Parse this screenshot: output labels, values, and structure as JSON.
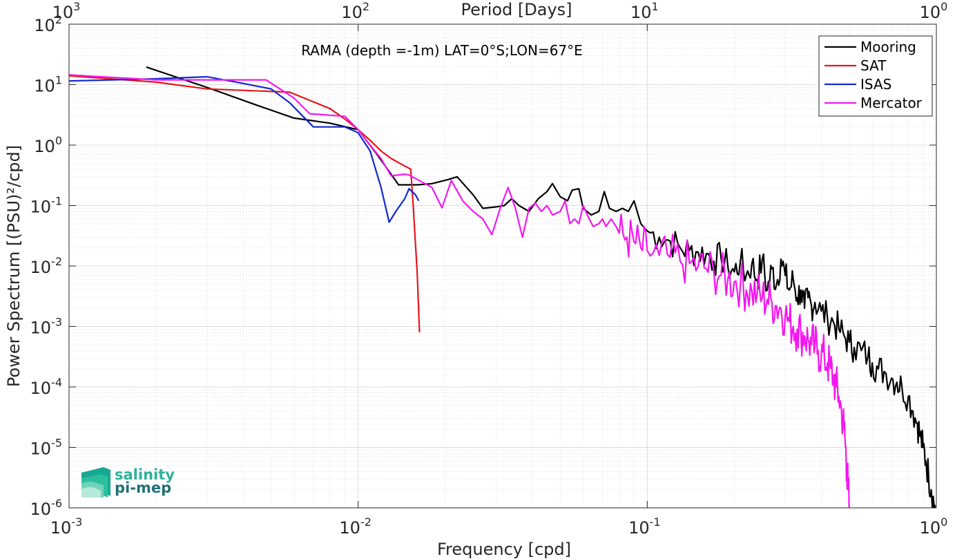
{
  "logo": {
    "line1": "salinity",
    "line2": "pi-mep",
    "color1": "#2bb39c",
    "color2": "#1f6f74"
  },
  "chart_data": {
    "type": "line",
    "title": "RAMA (depth =-1m) LAT=0°S;LON=67°E",
    "xlabel": "Frequency [cpd]",
    "ylabel": "Power Spectrum [(PSU)²/cpd]",
    "top_xlabel": "Period [Days]",
    "x_scale": "log",
    "y_scale": "log",
    "xlim": [
      0.001,
      1
    ],
    "ylim": [
      1e-06,
      100
    ],
    "x_ticks": [
      {
        "value": 0.001,
        "base": "10",
        "exp": "-3"
      },
      {
        "value": 0.01,
        "base": "10",
        "exp": "-2"
      },
      {
        "value": 0.1,
        "base": "10",
        "exp": "-1"
      },
      {
        "value": 1,
        "base": "10",
        "exp": "0"
      }
    ],
    "top_ticks": [
      {
        "value": 0.001,
        "base": "10",
        "exp": "3"
      },
      {
        "value": 0.01,
        "base": "10",
        "exp": "2"
      },
      {
        "value": 0.1,
        "base": "10",
        "exp": "1"
      },
      {
        "value": 1,
        "base": "10",
        "exp": "0"
      }
    ],
    "y_ticks": [
      {
        "value": 100,
        "base": "10",
        "exp": "2"
      },
      {
        "value": 10,
        "base": "10",
        "exp": "1"
      },
      {
        "value": 1,
        "base": "10",
        "exp": "0"
      },
      {
        "value": 0.1,
        "base": "10",
        "exp": "-1"
      },
      {
        "value": 0.01,
        "base": "10",
        "exp": "-2"
      },
      {
        "value": 0.001,
        "base": "10",
        "exp": "-3"
      },
      {
        "value": 0.0001,
        "base": "10",
        "exp": "-4"
      },
      {
        "value": 1e-05,
        "base": "10",
        "exp": "-5"
      },
      {
        "value": 1e-06,
        "base": "10",
        "exp": "-6"
      }
    ],
    "grid": true,
    "legend_position": "top-right",
    "series": [
      {
        "name": "Mooring",
        "color": "#000000",
        "points": [
          [
            0.00185,
            19.5
          ],
          [
            0.003,
            9.0
          ],
          [
            0.0045,
            4.5
          ],
          [
            0.006,
            2.8
          ],
          [
            0.008,
            2.3
          ],
          [
            0.01,
            1.8
          ],
          [
            0.0115,
            0.75
          ],
          [
            0.013,
            0.33
          ],
          [
            0.0138,
            0.22
          ],
          [
            0.016,
            0.22
          ],
          [
            0.018,
            0.23
          ],
          [
            0.0205,
            0.27
          ],
          [
            0.022,
            0.3
          ],
          [
            0.025,
            0.15
          ],
          [
            0.027,
            0.09
          ],
          [
            0.03,
            0.095
          ],
          [
            0.032,
            0.1
          ],
          [
            0.034,
            0.13
          ],
          [
            0.036,
            0.1
          ],
          [
            0.039,
            0.08
          ],
          [
            0.042,
            0.13
          ],
          [
            0.045,
            0.17
          ],
          [
            0.047,
            0.23
          ],
          [
            0.05,
            0.14
          ],
          [
            0.053,
            0.12
          ],
          [
            0.055,
            0.18
          ],
          [
            0.058,
            0.19
          ],
          [
            0.06,
            0.09
          ],
          [
            0.064,
            0.07
          ],
          [
            0.068,
            0.08
          ],
          [
            0.071,
            0.17
          ],
          [
            0.074,
            0.09
          ],
          [
            0.078,
            0.08
          ],
          [
            0.082,
            0.09
          ],
          [
            0.086,
            0.08
          ],
          [
            0.09,
            0.12
          ],
          [
            0.095,
            0.05
          ],
          [
            0.1,
            0.038
          ],
          [
            0.11,
            0.03
          ],
          [
            0.12,
            0.026
          ],
          [
            0.13,
            0.02
          ],
          [
            0.14,
            0.018
          ],
          [
            0.15,
            0.017
          ],
          [
            0.16,
            0.016
          ],
          [
            0.17,
            0.012
          ],
          [
            0.18,
            0.014
          ],
          [
            0.19,
            0.01
          ],
          [
            0.2,
            0.008
          ],
          [
            0.21,
            0.012
          ],
          [
            0.22,
            0.007
          ],
          [
            0.23,
            0.011
          ],
          [
            0.24,
            0.006
          ],
          [
            0.25,
            0.013
          ],
          [
            0.26,
            0.004
          ],
          [
            0.27,
            0.009
          ],
          [
            0.28,
            0.005
          ],
          [
            0.29,
            0.013
          ],
          [
            0.3,
            0.007
          ],
          [
            0.31,
            0.004
          ],
          [
            0.32,
            0.006
          ],
          [
            0.33,
            0.003
          ],
          [
            0.34,
            0.004
          ],
          [
            0.35,
            0.002
          ],
          [
            0.36,
            0.003
          ],
          [
            0.37,
            0.0022
          ],
          [
            0.38,
            0.0025
          ],
          [
            0.4,
            0.0018
          ],
          [
            0.42,
            0.0014
          ],
          [
            0.44,
            0.0012
          ],
          [
            0.46,
            0.0009
          ],
          [
            0.48,
            0.0007
          ],
          [
            0.5,
            0.00055
          ],
          [
            0.52,
            0.00045
          ],
          [
            0.55,
            0.0004
          ],
          [
            0.58,
            0.00032
          ],
          [
            0.6,
            0.00025
          ],
          [
            0.63,
            0.0002
          ],
          [
            0.66,
            0.00018
          ],
          [
            0.7,
            0.00014
          ],
          [
            0.73,
            0.00012
          ],
          [
            0.76,
            0.0001
          ],
          [
            0.8,
            7e-05
          ],
          [
            0.83,
            4e-05
          ],
          [
            0.86,
            2.5e-05
          ],
          [
            0.88,
            1.5e-05
          ],
          [
            0.9,
            1e-05
          ],
          [
            0.92,
            6e-06
          ],
          [
            0.94,
            3.5e-06
          ],
          [
            0.96,
            2e-06
          ],
          [
            0.98,
            1.2e-06
          ],
          [
            0.99,
            1e-06
          ]
        ],
        "noise": 0.55,
        "noise_from": 0.1
      },
      {
        "name": "SAT",
        "color": "#e8141b",
        "points": [
          [
            0.001,
            14.0
          ],
          [
            0.002,
            11.0
          ],
          [
            0.003,
            8.5
          ],
          [
            0.0058,
            7.5
          ],
          [
            0.008,
            4.0
          ],
          [
            0.009,
            2.7
          ],
          [
            0.01,
            1.8
          ],
          [
            0.011,
            1.2
          ],
          [
            0.012,
            0.8
          ],
          [
            0.013,
            0.6
          ],
          [
            0.0145,
            0.45
          ],
          [
            0.0152,
            0.4
          ],
          [
            0.0155,
            0.1
          ],
          [
            0.016,
            0.008
          ],
          [
            0.0163,
            0.0008
          ]
        ]
      },
      {
        "name": "ISAS",
        "color": "#1028d4",
        "points": [
          [
            0.001,
            11.5
          ],
          [
            0.002,
            12.5
          ],
          [
            0.003,
            13.5
          ],
          [
            0.0038,
            11.0
          ],
          [
            0.005,
            8.5
          ],
          [
            0.0058,
            5.0
          ],
          [
            0.007,
            2.0
          ],
          [
            0.008,
            2.0
          ],
          [
            0.009,
            2.0
          ],
          [
            0.01,
            1.6
          ],
          [
            0.011,
            0.8
          ],
          [
            0.012,
            0.2
          ],
          [
            0.0128,
            0.053
          ],
          [
            0.0135,
            0.08
          ],
          [
            0.0145,
            0.13
          ],
          [
            0.015,
            0.19
          ],
          [
            0.0158,
            0.15
          ],
          [
            0.0162,
            0.12
          ]
        ]
      },
      {
        "name": "Mercator",
        "color": "#f417f0",
        "points": [
          [
            0.001,
            14.5
          ],
          [
            0.002,
            12.0
          ],
          [
            0.003,
            12.0
          ],
          [
            0.0048,
            12.0
          ],
          [
            0.006,
            6.0
          ],
          [
            0.0068,
            3.3
          ],
          [
            0.009,
            3.0
          ],
          [
            0.01,
            1.8
          ],
          [
            0.011,
            1.0
          ],
          [
            0.012,
            0.6
          ],
          [
            0.013,
            0.31
          ],
          [
            0.0145,
            0.33
          ],
          [
            0.015,
            0.32
          ],
          [
            0.0165,
            0.25
          ],
          [
            0.018,
            0.2
          ],
          [
            0.0195,
            0.092
          ],
          [
            0.021,
            0.26
          ],
          [
            0.023,
            0.12
          ],
          [
            0.025,
            0.08
          ],
          [
            0.027,
            0.06
          ],
          [
            0.029,
            0.033
          ],
          [
            0.031,
            0.09
          ],
          [
            0.033,
            0.2
          ],
          [
            0.035,
            0.09
          ],
          [
            0.037,
            0.03
          ],
          [
            0.039,
            0.09
          ],
          [
            0.041,
            0.11
          ],
          [
            0.043,
            0.08
          ],
          [
            0.045,
            0.1
          ],
          [
            0.047,
            0.07
          ],
          [
            0.05,
            0.08
          ],
          [
            0.052,
            0.12
          ],
          [
            0.054,
            0.05
          ],
          [
            0.056,
            0.06
          ],
          [
            0.058,
            0.05
          ],
          [
            0.06,
            0.1
          ],
          [
            0.063,
            0.06
          ],
          [
            0.065,
            0.045
          ],
          [
            0.068,
            0.05
          ],
          [
            0.07,
            0.06
          ],
          [
            0.072,
            0.045
          ],
          [
            0.075,
            0.06
          ],
          [
            0.078,
            0.045
          ],
          [
            0.08,
            0.035
          ],
          [
            0.085,
            0.03
          ],
          [
            0.09,
            0.025
          ],
          [
            0.095,
            0.02
          ],
          [
            0.1,
            0.018
          ],
          [
            0.11,
            0.015
          ],
          [
            0.12,
            0.014
          ],
          [
            0.13,
            0.012
          ],
          [
            0.14,
            0.011
          ],
          [
            0.15,
            0.01
          ],
          [
            0.16,
            0.009
          ],
          [
            0.17,
            0.008
          ],
          [
            0.18,
            0.007
          ],
          [
            0.19,
            0.006
          ],
          [
            0.2,
            0.0055
          ],
          [
            0.21,
            0.005
          ],
          [
            0.22,
            0.004
          ],
          [
            0.23,
            0.0038
          ],
          [
            0.24,
            0.0035
          ],
          [
            0.25,
            0.003
          ],
          [
            0.26,
            0.0028
          ],
          [
            0.27,
            0.0025
          ],
          [
            0.28,
            0.0022
          ],
          [
            0.29,
            0.002
          ],
          [
            0.3,
            0.0015
          ],
          [
            0.31,
            0.0012
          ],
          [
            0.32,
            0.001
          ],
          [
            0.33,
            0.0009
          ],
          [
            0.34,
            0.0008
          ],
          [
            0.35,
            0.0007
          ],
          [
            0.36,
            0.0006
          ],
          [
            0.37,
            0.0005
          ],
          [
            0.38,
            0.00045
          ],
          [
            0.39,
            0.0004
          ],
          [
            0.4,
            0.00035
          ],
          [
            0.41,
            0.0003
          ],
          [
            0.42,
            0.00025
          ],
          [
            0.43,
            0.0002
          ],
          [
            0.44,
            0.00015
          ],
          [
            0.45,
            0.0001
          ],
          [
            0.46,
            7e-05
          ],
          [
            0.47,
            4e-05
          ],
          [
            0.48,
            2e-05
          ],
          [
            0.485,
            1e-05
          ],
          [
            0.49,
            5e-06
          ],
          [
            0.495,
            2e-06
          ],
          [
            0.5,
            1e-06
          ]
        ],
        "noise": 0.8,
        "noise_from": 0.08
      }
    ]
  }
}
